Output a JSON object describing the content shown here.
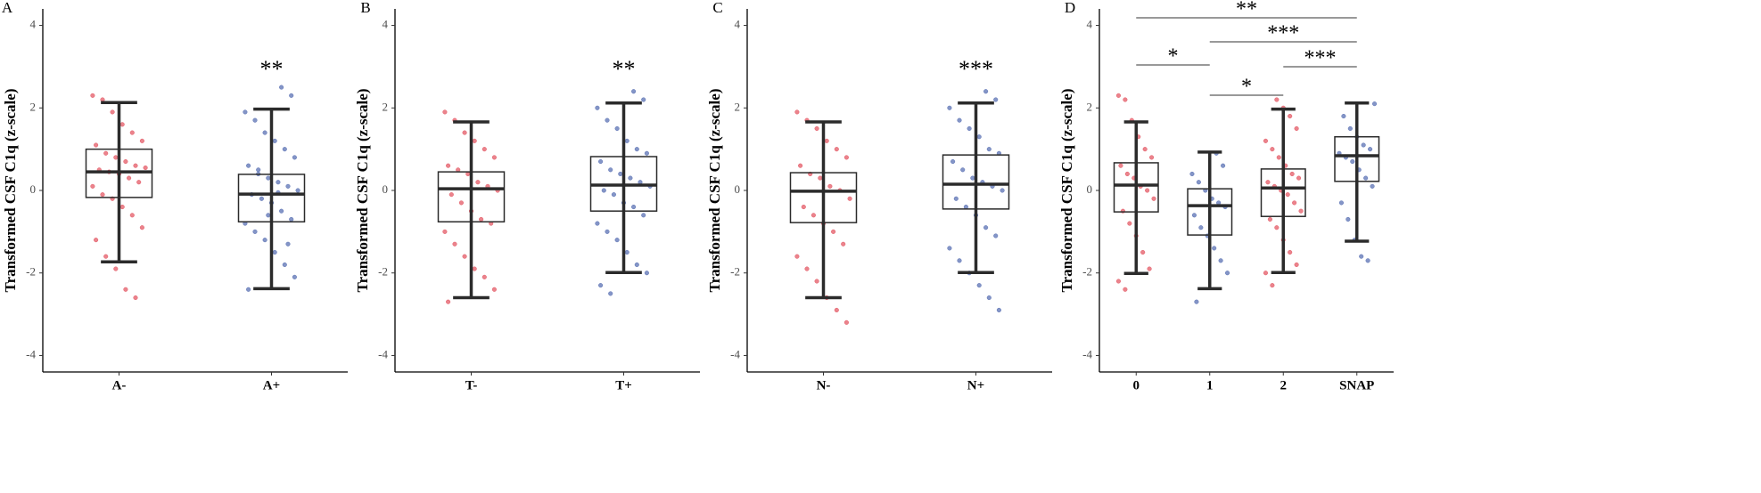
{
  "chart_data": [
    {
      "type": "box",
      "panel": "A",
      "ylabel": "Transformed CSF C1q (z-scale)",
      "categories": [
        "A-",
        "A+"
      ],
      "colors": [
        "#e45a66",
        "#5b72b4"
      ],
      "ylim": [
        -4.4,
        4.4
      ],
      "yticks": [
        -4,
        -2,
        0,
        2,
        4
      ],
      "significance": [
        null,
        "**"
      ],
      "boxes": [
        {
          "whisker_low": -1.73,
          "q1": -0.17,
          "median": 0.45,
          "q3": 1.0,
          "whisker_high": 2.13,
          "points": [
            2.3,
            2.2,
            1.9,
            1.6,
            1.4,
            1.2,
            1.1,
            0.9,
            0.8,
            0.7,
            0.6,
            0.55,
            0.5,
            0.45,
            0.4,
            0.3,
            0.2,
            0.1,
            -0.1,
            -0.2,
            -0.4,
            -0.6,
            -0.9,
            -1.2,
            -1.6,
            -1.9,
            -2.4,
            -2.6
          ]
        },
        {
          "whisker_low": -2.38,
          "q1": -0.76,
          "median": -0.09,
          "q3": 0.39,
          "whisker_high": 1.97,
          "points": [
            2.5,
            2.3,
            1.9,
            1.7,
            1.4,
            1.2,
            1.0,
            0.8,
            0.6,
            0.4,
            0.3,
            0.2,
            0.1,
            0,
            -0.1,
            -0.2,
            -0.3,
            -0.5,
            -0.7,
            -0.8,
            -1.0,
            -1.2,
            -1.5,
            -1.8,
            -2.1,
            -2.4,
            0.5,
            -0.6,
            -0.05,
            -1.3
          ]
        }
      ]
    },
    {
      "type": "box",
      "panel": "B",
      "ylabel": "Transformed CSF C1q (z-scale)",
      "categories": [
        "T-",
        "T+"
      ],
      "colors": [
        "#e45a66",
        "#5b72b4"
      ],
      "ylim": [
        -4.4,
        4.4
      ],
      "yticks": [
        -4,
        -2,
        0,
        2,
        4
      ],
      "significance": [
        null,
        "**"
      ],
      "boxes": [
        {
          "whisker_low": -2.6,
          "q1": -0.76,
          "median": 0.04,
          "q3": 0.45,
          "whisker_high": 1.66,
          "points": [
            1.9,
            1.7,
            1.4,
            1.2,
            1.0,
            0.8,
            0.6,
            0.5,
            0.4,
            0.2,
            0.1,
            0,
            -0.1,
            -0.3,
            -0.5,
            -0.7,
            -0.8,
            -1.0,
            -1.3,
            -1.6,
            -1.9,
            -2.1,
            -2.4,
            -2.7
          ]
        },
        {
          "whisker_low": -1.99,
          "q1": -0.5,
          "median": 0.13,
          "q3": 0.82,
          "whisker_high": 2.12,
          "points": [
            2.4,
            2.2,
            2.0,
            1.7,
            1.5,
            1.2,
            1.0,
            0.9,
            0.7,
            0.5,
            0.4,
            0.3,
            0.2,
            0.1,
            0,
            -0.1,
            -0.3,
            -0.4,
            -0.6,
            -0.8,
            -1.0,
            -1.2,
            -1.5,
            -1.8,
            -2.0,
            -2.3,
            -2.5
          ]
        }
      ]
    },
    {
      "type": "box",
      "panel": "C",
      "ylabel": "Transformed CSF C1q (z-scale)",
      "categories": [
        "N-",
        "N+"
      ],
      "colors": [
        "#e45a66",
        "#5b72b4"
      ],
      "ylim": [
        -4.4,
        4.4
      ],
      "yticks": [
        -4,
        -2,
        0,
        2,
        4
      ],
      "significance": [
        null,
        "***"
      ],
      "boxes": [
        {
          "whisker_low": -2.6,
          "q1": -0.78,
          "median": -0.02,
          "q3": 0.43,
          "whisker_high": 1.66,
          "points": [
            1.9,
            1.7,
            1.5,
            1.2,
            1.0,
            0.8,
            0.6,
            0.4,
            0.3,
            0.1,
            0,
            -0.2,
            -0.4,
            -0.6,
            -0.8,
            -1.0,
            -1.3,
            -1.6,
            -1.9,
            -2.2,
            -2.6,
            -2.9,
            -3.2
          ]
        },
        {
          "whisker_low": -1.99,
          "q1": -0.45,
          "median": 0.15,
          "q3": 0.86,
          "whisker_high": 2.12,
          "points": [
            2.4,
            2.2,
            2.0,
            1.7,
            1.5,
            1.3,
            1.0,
            0.9,
            0.7,
            0.5,
            0.3,
            0.2,
            0.1,
            0,
            -0.2,
            -0.4,
            -0.6,
            -0.9,
            -1.1,
            -1.4,
            -1.7,
            -2.0,
            -2.3,
            -2.6,
            -2.9
          ]
        }
      ]
    },
    {
      "type": "box",
      "panel": "D",
      "ylabel": "Transformed CSF C1q (z-scale)",
      "categories": [
        "0",
        "1",
        "2",
        "SNAP"
      ],
      "colors": [
        "#e45a66",
        "#5b72b4",
        "#e45a66",
        "#5b72b4"
      ],
      "ylim": [
        -4.4,
        4.4
      ],
      "yticks": [
        -4,
        -2,
        0,
        2,
        4
      ],
      "comparisons": [
        {
          "from": "0",
          "to": "SNAP",
          "label": "**"
        },
        {
          "from": "1",
          "to": "SNAP",
          "label": "***"
        },
        {
          "from": "0",
          "to": "1",
          "label": "*"
        },
        {
          "from": "2",
          "to": "SNAP",
          "label": "***"
        },
        {
          "from": "1",
          "to": "2",
          "label": "*"
        }
      ],
      "boxes": [
        {
          "whisker_low": -2.01,
          "q1": -0.52,
          "median": 0.13,
          "q3": 0.67,
          "whisker_high": 1.66,
          "points": [
            2.3,
            2.2,
            1.7,
            1.3,
            1.0,
            0.8,
            0.6,
            0.4,
            0.3,
            0.1,
            0,
            -0.2,
            -0.5,
            -0.8,
            -1.1,
            -1.5,
            -1.9,
            -2.2,
            -2.4
          ]
        },
        {
          "whisker_low": -2.38,
          "q1": -1.08,
          "median": -0.37,
          "q3": 0.04,
          "whisker_high": 0.93,
          "points": [
            0.9,
            0.6,
            0.4,
            0.2,
            0,
            -0.2,
            -0.3,
            -0.4,
            -0.6,
            -0.9,
            -1.1,
            -1.4,
            -1.7,
            -2.0,
            -2.7
          ]
        },
        {
          "whisker_low": -1.99,
          "q1": -0.63,
          "median": 0.06,
          "q3": 0.52,
          "whisker_high": 1.97,
          "points": [
            2.2,
            2.0,
            1.8,
            1.5,
            1.2,
            1.0,
            0.8,
            0.6,
            0.4,
            0.3,
            0.2,
            0.1,
            0,
            -0.1,
            -0.3,
            -0.5,
            -0.7,
            -0.9,
            -1.2,
            -1.5,
            -1.8,
            -2.0,
            -2.3
          ]
        },
        {
          "whisker_low": -1.23,
          "q1": 0.22,
          "median": 0.84,
          "q3": 1.3,
          "whisker_high": 2.12,
          "points": [
            2.1,
            1.8,
            1.5,
            1.3,
            1.1,
            1.0,
            0.9,
            0.8,
            0.7,
            0.5,
            0.3,
            0.1,
            -0.3,
            -0.7,
            -1.2,
            -1.6,
            -1.7
          ]
        }
      ]
    }
  ]
}
